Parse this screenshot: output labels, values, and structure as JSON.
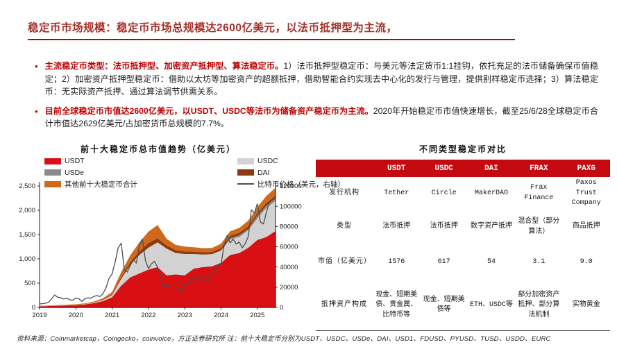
{
  "header": {
    "title": "稳定币市场规模：稳定币市场总规模达2600亿美元，以法币抵押型为主流，"
  },
  "bullets": [
    {
      "segments": [
        {
          "s": "lead",
          "t": "主流稳定币类型：法币抵押型、加密资产抵押型、算法稳定币。"
        },
        {
          "s": "normal",
          "t": "1）法币抵押型稳定币：与美元等法定货币1:1挂钩，依托充足的法币储备确保币值稳定；2）加密资产抵押型稳定币：借助以太坊等加密资产的超额抵押，借助智能合约实现去中心化的发行与管理，提供别样稳定币选择；3）算法稳定币：无实际资产抵押、通过算法调节供需关系。"
        }
      ]
    },
    {
      "segments": [
        {
          "s": "lead",
          "t": "目前全球稳定币市值达2600亿美元，以USDT、USDC等法币为储备资产稳定币为主流。"
        },
        {
          "s": "normal",
          "t": "2020年开始稳定币市值快速增长，截至25/6/28全球稳定币合计市值达2629亿美元/占加密货币总规模的7.7%。"
        }
      ]
    }
  ],
  "chart_data": {
    "type": "area",
    "title": "前十大稳定币总市值趋势（亿美元）",
    "unit_left": "亿美元",
    "unit_right": "美元",
    "x": [
      2019.0,
      2019.25,
      2019.5,
      2019.75,
      2020.0,
      2020.25,
      2020.5,
      2020.75,
      2021.0,
      2021.25,
      2021.5,
      2021.75,
      2022.0,
      2022.25,
      2022.5,
      2022.75,
      2023.0,
      2023.25,
      2023.5,
      2023.75,
      2024.0,
      2024.25,
      2024.5,
      2024.75,
      2025.0,
      2025.25,
      2025.5
    ],
    "series": [
      {
        "key": "usdt",
        "name": "USDT",
        "color": "#D80F13",
        "values": [
          20,
          28,
          35,
          41,
          47,
          63,
          90,
          130,
          210,
          450,
          620,
          700,
          780,
          830,
          660,
          680,
          660,
          800,
          830,
          845,
          920,
          1080,
          1120,
          1230,
          1390,
          1450,
          1576
        ]
      },
      {
        "key": "usdc",
        "name": "USDC",
        "color": "#D2D2D2",
        "values": [
          2,
          3,
          4,
          4,
          5,
          7,
          11,
          25,
          45,
          140,
          260,
          380,
          450,
          510,
          550,
          440,
          440,
          300,
          260,
          250,
          250,
          320,
          330,
          360,
          440,
          600,
          617
        ]
      },
      {
        "key": "usde",
        "name": "USDe",
        "color": "#8A8A8A",
        "values": [
          0,
          0,
          0,
          0,
          0,
          0,
          0,
          0,
          0,
          0,
          0,
          0,
          0,
          0,
          0,
          0,
          0,
          0,
          0,
          0,
          3,
          23,
          36,
          29,
          58,
          47,
          52
        ]
      },
      {
        "key": "dai",
        "name": "DAI",
        "color": "#8C3A0E",
        "values": [
          1,
          1,
          1,
          1,
          1,
          1,
          2,
          8,
          15,
          40,
          55,
          70,
          95,
          85,
          68,
          57,
          52,
          48,
          45,
          46,
          50,
          51,
          51,
          53,
          53,
          54,
          54
        ]
      },
      {
        "key": "others",
        "name": "其他前十大稳定币合计",
        "color": "#CF6A1D",
        "values": [
          8,
          9,
          10,
          11,
          12,
          14,
          18,
          28,
          50,
          100,
          140,
          190,
          235,
          270,
          135,
          110,
          100,
          90,
          85,
          85,
          90,
          95,
          100,
          115,
          125,
          145,
          165
        ]
      }
    ],
    "line_series": {
      "key": "btc",
      "name": "比特币价格（美元，右轴）",
      "color": "#4D4D4D",
      "x_start": 2019.0,
      "x_step": 0.0833333,
      "values": [
        3400,
        3800,
        4100,
        5300,
        8500,
        12300,
        10100,
        9600,
        8300,
        9200,
        7500,
        7200,
        9300,
        8600,
        5900,
        8600,
        9500,
        9100,
        11000,
        11700,
        10800,
        13800,
        19700,
        29000,
        33100,
        45200,
        58900,
        63500,
        37300,
        35000,
        41600,
        47100,
        43800,
        61300,
        67500,
        46200,
        38500,
        43200,
        45500,
        39700,
        31800,
        19900,
        23300,
        20000,
        19400,
        20500,
        17200,
        16500,
        23100,
        23500,
        28500,
        29200,
        27200,
        30500,
        29200,
        26000,
        27000,
        34500,
        37700,
        42300,
        42600,
        61200,
        71300,
        63800,
        67500,
        62700,
        64600,
        59000,
        63300,
        70200,
        96400,
        93400,
        102400,
        84400,
        82500,
        94200,
        104600,
        107000,
        110000
      ]
    },
    "left_axis": {
      "min": 0,
      "max": 2500,
      "tick_values": [
        0,
        500,
        1000,
        1500,
        2000,
        2500
      ],
      "ticks": [
        "0",
        "500",
        "1,000",
        "1,500",
        "2,000",
        "2,500"
      ]
    },
    "right_axis": {
      "min": 0,
      "max": 120000,
      "tick_values": [
        0,
        20000,
        40000,
        60000,
        80000,
        100000,
        120000
      ],
      "ticks": [
        "0",
        "20000",
        "40000",
        "60000",
        "80000",
        "100000",
        "120000"
      ]
    },
    "x_axis": {
      "min": 2019,
      "max": 2025.5,
      "tick_values": [
        2019,
        2020,
        2021,
        2022,
        2023,
        2024,
        2025
      ],
      "ticks": [
        "2019",
        "2020",
        "2021",
        "2022",
        "2023",
        "2024",
        "2025"
      ]
    },
    "legend": [
      {
        "key": "usdt",
        "label": "USDT",
        "color": "#D80F13",
        "type": "box"
      },
      {
        "key": "usde",
        "label": "USDe",
        "color": "#8A8A8A",
        "type": "box"
      },
      {
        "key": "others",
        "label": "其他前十大稳定币合计",
        "color": "#CF6A1D",
        "type": "box"
      },
      {
        "key": "usdc",
        "label": "USDC",
        "color": "#D2D2D2",
        "type": "box"
      },
      {
        "key": "dai",
        "label": "DAI",
        "color": "#8C3A0E",
        "type": "box"
      },
      {
        "key": "btc",
        "label": "比特币价格（美元，右轴）",
        "color": "#4D4D4D",
        "type": "line"
      }
    ],
    "legend_position": "top",
    "grid": false
  },
  "comparison_table": {
    "title": "不同类型稳定币对比",
    "columns": [
      "",
      "USDT",
      "USDC",
      "DAI",
      "FRAX",
      "PAXG"
    ],
    "rows": [
      {
        "label": "发行机构",
        "values": [
          "Tether",
          "Circle",
          "MakerDAO",
          "Frax Finance",
          "Paxos Trust Company"
        ]
      },
      {
        "label": "类型",
        "values": [
          "法币抵押",
          "法币抵押",
          "数字资产抵押",
          "混合型（部分算法）",
          "商品抵押"
        ]
      },
      {
        "label": "市值（亿美元）",
        "values": [
          "1576",
          "617",
          "54",
          "3.1",
          "9.0"
        ]
      },
      {
        "label": "抵押资产构成",
        "values": [
          "现金、短期美债、贵金属、比特币等",
          "现金、短期美债等",
          "ETH、USDC等",
          "部分加密资产抵押、部分算法机制",
          "实物黄金"
        ]
      }
    ]
  },
  "footer": {
    "source": "资料来源：Coinmarketcap，Coingecko，coinvoice，方正证券研究所 注：前十大稳定币分别为USDT、USDC、USDe、DAI、USD1、FDUSD、PYUSD、TUSD、USDD、EURC"
  },
  "colors": {
    "title_red": "#A63028",
    "rule_red": "#C00000",
    "lead_red": "#C00000",
    "table_header_red": "#C40A10"
  }
}
